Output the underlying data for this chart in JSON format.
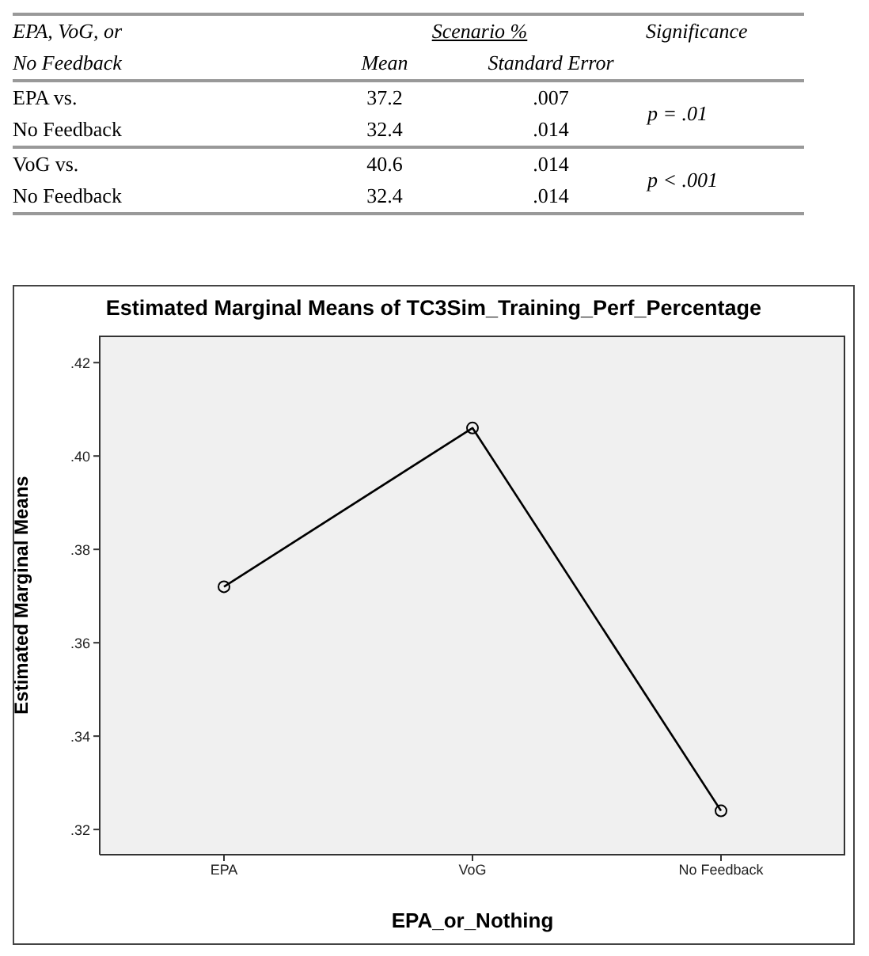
{
  "chart_data": [
    {
      "type": "other",
      "annotations": [
        "EPA, VoG, or",
        "Scenario %",
        "Significance",
        "No Feedback",
        "Mean",
        "Standard Error",
        "EPA vs.",
        "37.2",
        ".007",
        "p = .01",
        "No Feedback",
        "32.4",
        ".014",
        "VoG vs.",
        "40.6",
        ".014",
        "p  < .001",
        "No Feedback",
        "32.4",
        ".014"
      ]
    },
    {
      "type": "line",
      "title": "Estimated Marginal Means of TC3Sim_Training_Perf_Percentage",
      "xlabel": "EPA_or_Nothing",
      "ylabel": "Estimated Marginal Means",
      "categories": [
        "EPA",
        "VoG",
        "No Feedback"
      ],
      "series": [
        {
          "color": "#000000",
          "values": [
            0.372,
            0.406,
            0.324
          ]
        }
      ],
      "ylim": [
        0.3146,
        0.4258
      ],
      "yticks": [
        {
          "value": 0.32,
          "label": ".32"
        },
        {
          "value": 0.34,
          "label": ".34"
        },
        {
          "value": 0.36,
          "label": ".36"
        },
        {
          "value": 0.38,
          "label": ".38"
        },
        {
          "value": 0.4,
          "label": ".40"
        },
        {
          "value": 0.42,
          "label": ".42"
        }
      ],
      "marker": "circle",
      "grid": false
    }
  ]
}
